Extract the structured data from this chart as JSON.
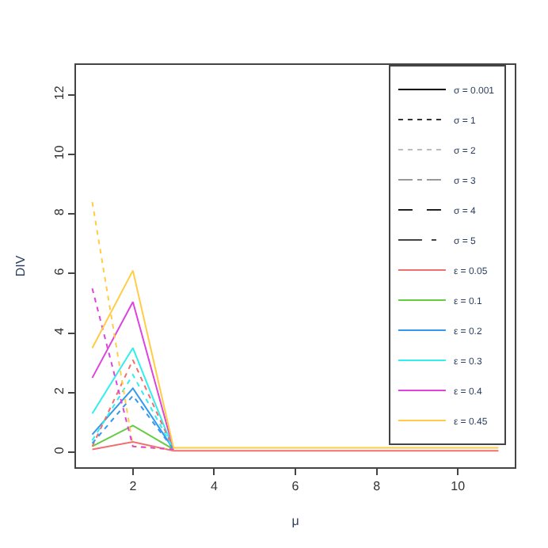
{
  "chart_data": {
    "type": "line",
    "xlabel": "μ",
    "ylabel": "DIV",
    "x": [
      1,
      2,
      3,
      4,
      5,
      6,
      7,
      8,
      9,
      10,
      11
    ],
    "series": [
      {
        "name": "σ = 0.001",
        "color": "#000000",
        "line_style": "solid",
        "values": [
          null,
          null,
          null,
          null,
          null,
          null,
          null,
          null,
          null,
          null,
          null
        ]
      },
      {
        "name": "σ = 1",
        "color": "#333333",
        "line_style": "dotted",
        "values": [
          null,
          null,
          null,
          null,
          null,
          null,
          null,
          null,
          null,
          null,
          null
        ]
      },
      {
        "name": "σ = 2",
        "color": "#bbbbbb",
        "line_style": "dotted",
        "values": [
          null,
          null,
          null,
          null,
          null,
          null,
          null,
          null,
          null,
          null,
          null
        ]
      },
      {
        "name": "σ = 3",
        "color": "#999999",
        "line_style": "dashdot",
        "values": [
          null,
          null,
          null,
          null,
          null,
          null,
          null,
          null,
          null,
          null,
          null
        ]
      },
      {
        "name": "σ = 4",
        "color": "#222222",
        "line_style": "dashed",
        "values": [
          null,
          null,
          null,
          null,
          null,
          null,
          null,
          null,
          null,
          null,
          null
        ]
      },
      {
        "name": "σ = 5",
        "color": "#444444",
        "line_style": "longdashdot",
        "values": [
          null,
          null,
          null,
          null,
          null,
          null,
          null,
          null,
          null,
          null,
          null
        ]
      },
      {
        "name": "ε = 0.05",
        "color": "#f07070",
        "line_style": "solid",
        "values": [
          null,
          null,
          null,
          null,
          null,
          null,
          null,
          null,
          null,
          null,
          null
        ]
      },
      {
        "name": "ε = 0.1",
        "color": "#66cc44",
        "line_style": "solid",
        "values": [
          null,
          null,
          null,
          null,
          null,
          null,
          null,
          null,
          null,
          null,
          null
        ]
      },
      {
        "name": "ε = 0.2",
        "color": "#3399ee",
        "line_style": "solid",
        "values": [
          null,
          null,
          null,
          null,
          null,
          null,
          null,
          null,
          null,
          null,
          null
        ]
      },
      {
        "name": "ε = 0.3",
        "color": "#33eeee",
        "line_style": "solid",
        "values": [
          null,
          null,
          null,
          null,
          null,
          null,
          null,
          null,
          null,
          null,
          null
        ]
      },
      {
        "name": "ε = 0.4",
        "color": "#dd44dd",
        "line_style": "solid",
        "values": [
          null,
          null,
          null,
          null,
          null,
          null,
          null,
          null,
          null,
          null,
          null
        ]
      },
      {
        "name": "ε = 0.45",
        "color": "#ffcc44",
        "line_style": "solid",
        "values": [
          null,
          null,
          null,
          null,
          null,
          null,
          null,
          null,
          null,
          null,
          null
        ]
      },
      {
        "color": "#f07070",
        "line_style": "solid",
        "values": [
          0.1,
          0.35,
          0.05,
          0.05,
          0.05,
          0.05,
          0.05,
          0.05,
          0.05,
          0.05,
          0.05
        ]
      },
      {
        "color": "#66cc44",
        "line_style": "solid",
        "values": [
          0.2,
          0.9,
          0.1,
          null,
          null,
          null,
          null,
          null,
          null,
          null,
          null
        ]
      },
      {
        "color": "#3399ee",
        "line_style": "solid",
        "values": [
          0.6,
          2.15,
          0.1,
          null,
          null,
          null,
          null,
          null,
          null,
          null,
          null
        ]
      },
      {
        "color": "#33eeee",
        "line_style": "solid",
        "values": [
          1.3,
          3.5,
          0.1,
          null,
          null,
          null,
          null,
          null,
          null,
          null,
          null
        ]
      },
      {
        "color": "#dd44dd",
        "line_style": "solid",
        "values": [
          2.5,
          5.05,
          0.1,
          null,
          null,
          null,
          null,
          null,
          null,
          null,
          null
        ]
      },
      {
        "color": "#f07070",
        "line_style": "dotted",
        "values": [
          0.2,
          3.1,
          0.1,
          null,
          null,
          null,
          null,
          null,
          null,
          null,
          null
        ]
      },
      {
        "color": "#3399ee",
        "line_style": "dotted",
        "values": [
          0.3,
          1.9,
          0.1,
          null,
          null,
          null,
          null,
          null,
          null,
          null,
          null
        ]
      },
      {
        "color": "#33eeee",
        "line_style": "dotted",
        "values": [
          0.4,
          2.6,
          0.1,
          null,
          null,
          null,
          null,
          null,
          null,
          null,
          null
        ]
      },
      {
        "color": "#ffcc44",
        "line_style": "dotted",
        "values": [
          8.4,
          0.2,
          0.1,
          null,
          null,
          null,
          null,
          null,
          null,
          null,
          null
        ]
      },
      {
        "color": "#dd44dd",
        "line_style": "dotted",
        "values": [
          5.5,
          0.2,
          0.1,
          null,
          null,
          null,
          null,
          null,
          null,
          null,
          null
        ]
      },
      {
        "color": "#ffcc44",
        "line_style": "solid",
        "values": [
          3.5,
          6.1,
          0.15,
          0.15,
          0.15,
          0.15,
          0.15,
          0.15,
          0.15,
          0.15,
          0.15
        ]
      }
    ],
    "xlim": [
      0.6,
      11.4
    ],
    "ylim": [
      -0.5,
      13
    ],
    "xticks": [
      2,
      4,
      6,
      8,
      10
    ],
    "yticks": [
      0,
      2,
      4,
      6,
      8,
      10,
      12
    ],
    "legend": "top right",
    "marker": "none"
  }
}
